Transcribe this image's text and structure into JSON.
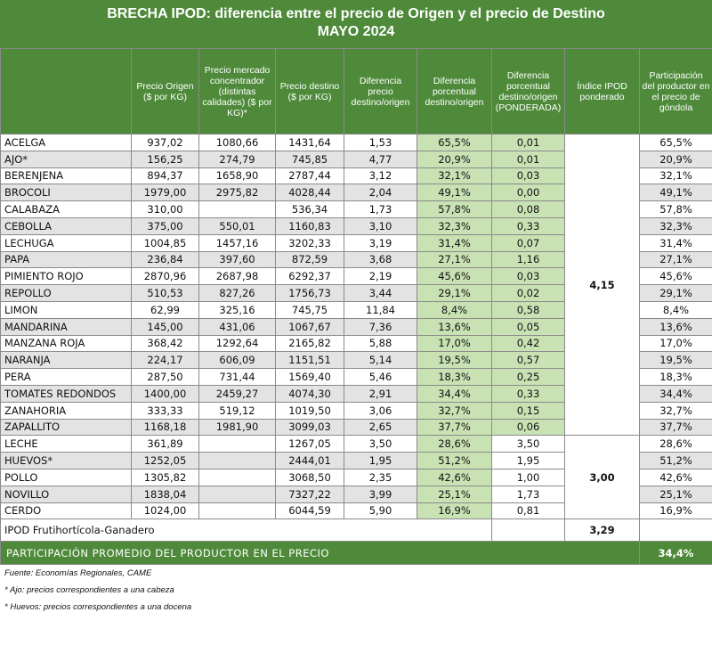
{
  "title": {
    "line1": "BRECHA IPOD: diferencia entre el precio de Origen y el precio de Destino",
    "line2": "MAYO 2024"
  },
  "headers": [
    "",
    "Precio Origen ($ por KG)",
    "Precio mercado concentrador (distintas calidades) ($ por KG)*",
    "Precio destino ($ por KG)",
    "Diferencia precio destino/origen",
    "Diferencia porcentual destino/origen",
    "Diferencia porcentual destino/origen (PONDERADA)",
    "Índice IPOD ponderado",
    "Participación del productor en el precio de góndola"
  ],
  "group1_rows": [
    [
      "ACELGA",
      "937,02",
      "1080,66",
      "1431,64",
      "1,53",
      "65,5%",
      "0,01",
      "65,5%"
    ],
    [
      "AJO*",
      "156,25",
      "274,79",
      "745,85",
      "4,77",
      "20,9%",
      "0,01",
      "20,9%"
    ],
    [
      "BERENJENA",
      "894,37",
      "1658,90",
      "2787,44",
      "3,12",
      "32,1%",
      "0,03",
      "32,1%"
    ],
    [
      "BROCOLI",
      "1979,00",
      "2975,82",
      "4028,44",
      "2,04",
      "49,1%",
      "0,00",
      "49,1%"
    ],
    [
      "CALABAZA",
      "310,00",
      "",
      "536,34",
      "1,73",
      "57,8%",
      "0,08",
      "57,8%"
    ],
    [
      "CEBOLLA",
      "375,00",
      "550,01",
      "1160,83",
      "3,10",
      "32,3%",
      "0,33",
      "32,3%"
    ],
    [
      "LECHUGA",
      "1004,85",
      "1457,16",
      "3202,33",
      "3,19",
      "31,4%",
      "0,07",
      "31,4%"
    ],
    [
      "PAPA",
      "236,84",
      "397,60",
      "872,59",
      "3,68",
      "27,1%",
      "1,16",
      "27,1%"
    ],
    [
      "PIMIENTO ROJO",
      "2870,96",
      "2687,98",
      "6292,37",
      "2,19",
      "45,6%",
      "0,03",
      "45,6%"
    ],
    [
      "REPOLLO",
      "510,53",
      "827,26",
      "1756,73",
      "3,44",
      "29,1%",
      "0,02",
      "29,1%"
    ],
    [
      "LIMON",
      "62,99",
      "325,16",
      "745,75",
      "11,84",
      "8,4%",
      "0,58",
      "8,4%"
    ],
    [
      "MANDARINA",
      "145,00",
      "431,06",
      "1067,67",
      "7,36",
      "13,6%",
      "0,05",
      "13,6%"
    ],
    [
      "MANZANA ROJA",
      "368,42",
      "1292,64",
      "2165,82",
      "5,88",
      "17,0%",
      "0,42",
      "17,0%"
    ],
    [
      "NARANJA",
      "224,17",
      "606,09",
      "1151,51",
      "5,14",
      "19,5%",
      "0,57",
      "19,5%"
    ],
    [
      "PERA",
      "287,50",
      "731,44",
      "1569,40",
      "5,46",
      "18,3%",
      "0,25",
      "18,3%"
    ],
    [
      "TOMATES REDONDOS",
      "1400,00",
      "2459,27",
      "4074,30",
      "2,91",
      "34,4%",
      "0,33",
      "34,4%"
    ],
    [
      "ZANAHORIA",
      "333,33",
      "519,12",
      "1019,50",
      "3,06",
      "32,7%",
      "0,15",
      "32,7%"
    ],
    [
      "ZAPALLITO",
      "1168,18",
      "1981,90",
      "3099,03",
      "2,65",
      "37,7%",
      "0,06",
      "37,7%"
    ]
  ],
  "group1_index": "4,15",
  "group2_rows": [
    [
      "LECHE",
      "361,89",
      "",
      "1267,05",
      "3,50",
      "28,6%",
      "3,50",
      "28,6%"
    ],
    [
      "HUEVOS*",
      "1252,05",
      "",
      "2444,01",
      "1,95",
      "51,2%",
      "1,95",
      "51,2%"
    ],
    [
      "POLLO",
      "1305,82",
      "",
      "3068,50",
      "2,35",
      "42,6%",
      "1,00",
      "42,6%"
    ],
    [
      "NOVILLO",
      "1838,04",
      "",
      "7327,22",
      "3,99",
      "25,1%",
      "1,73",
      "25,1%"
    ],
    [
      "CERDO",
      "1024,00",
      "",
      "6044,59",
      "5,90",
      "16,9%",
      "0,81",
      "16,9%"
    ]
  ],
  "group2_index": "3,00",
  "ipod_row": {
    "label": "IPOD Frutihortícola-Ganadero",
    "value": "3,29"
  },
  "participation_row": {
    "label": "PARTICIPACIÓN PROMEDIO DEL PRODUCTOR EN EL PRECIO",
    "value": "34,4%"
  },
  "footnotes": [
    "Fuente: Economías Regionales, CAME",
    "* Ajo: precios correspondientes a una cabeza",
    "* Huevos: precios correspondientes a una docena"
  ],
  "colors": {
    "header_green": "#4e8a3a",
    "highlight_green": "#c8e2b4",
    "alt_row_gray": "#e3e3e3"
  }
}
